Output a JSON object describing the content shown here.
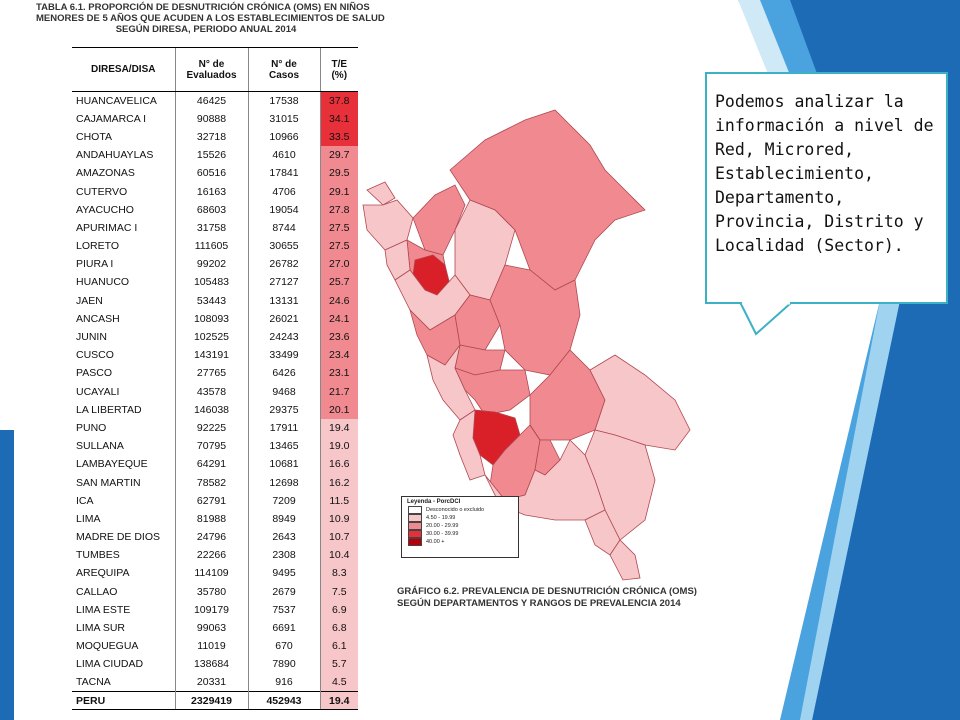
{
  "table": {
    "title_line1": "TABLA 6.1. PROPORCIÓN DE DESNUTRICIÓN CRÓNICA (OMS) EN NIÑOS",
    "title_line2": "MENORES DE 5 AÑOS QUE ACUDEN A LOS ESTABLECIMIENTOS DE SALUD",
    "title_line3": "SEGÚN DIRESA, PERIODO ANUAL 2014",
    "headers": {
      "diresa": "DIRESA/DISA",
      "evaluados_1": "N° de",
      "evaluados_2": "Evaluados",
      "casos_1": "N° de",
      "casos_2": "Casos",
      "te_1": "T/E",
      "te_2": "(%)"
    },
    "rows": [
      {
        "name": "HUANCAVELICA",
        "evaluados": "46425",
        "casos": "17538",
        "te": "37.8"
      },
      {
        "name": "CAJAMARCA I",
        "evaluados": "90888",
        "casos": "31015",
        "te": "34.1"
      },
      {
        "name": "CHOTA",
        "evaluados": "32718",
        "casos": "10966",
        "te": "33.5"
      },
      {
        "name": "ANDAHUAYLAS",
        "evaluados": "15526",
        "casos": "4610",
        "te": "29.7"
      },
      {
        "name": "AMAZONAS",
        "evaluados": "60516",
        "casos": "17841",
        "te": "29.5"
      },
      {
        "name": "CUTERVO",
        "evaluados": "16163",
        "casos": "4706",
        "te": "29.1"
      },
      {
        "name": "AYACUCHO",
        "evaluados": "68603",
        "casos": "19054",
        "te": "27.8"
      },
      {
        "name": "APURIMAC I",
        "evaluados": "31758",
        "casos": "8744",
        "te": "27.5"
      },
      {
        "name": "LORETO",
        "evaluados": "111605",
        "casos": "30655",
        "te": "27.5"
      },
      {
        "name": "PIURA I",
        "evaluados": "99202",
        "casos": "26782",
        "te": "27.0"
      },
      {
        "name": "HUANUCO",
        "evaluados": "105483",
        "casos": "27127",
        "te": "25.7"
      },
      {
        "name": "JAEN",
        "evaluados": "53443",
        "casos": "13131",
        "te": "24.6"
      },
      {
        "name": "ANCASH",
        "evaluados": "108093",
        "casos": "26021",
        "te": "24.1"
      },
      {
        "name": "JUNIN",
        "evaluados": "102525",
        "casos": "24243",
        "te": "23.6"
      },
      {
        "name": "CUSCO",
        "evaluados": "143191",
        "casos": "33499",
        "te": "23.4"
      },
      {
        "name": "PASCO",
        "evaluados": "27765",
        "casos": "6426",
        "te": "23.1"
      },
      {
        "name": "UCAYALI",
        "evaluados": "43578",
        "casos": "9468",
        "te": "21.7"
      },
      {
        "name": "LA LIBERTAD",
        "evaluados": "146038",
        "casos": "29375",
        "te": "20.1"
      },
      {
        "name": "PUNO",
        "evaluados": "92225",
        "casos": "17911",
        "te": "19.4"
      },
      {
        "name": "SULLANA",
        "evaluados": "70795",
        "casos": "13465",
        "te": "19.0"
      },
      {
        "name": "LAMBAYEQUE",
        "evaluados": "64291",
        "casos": "10681",
        "te": "16.6"
      },
      {
        "name": "SAN MARTIN",
        "evaluados": "78582",
        "casos": "12698",
        "te": "16.2"
      },
      {
        "name": "ICA",
        "evaluados": "62791",
        "casos": "7209",
        "te": "11.5"
      },
      {
        "name": "LIMA",
        "evaluados": "81988",
        "casos": "8949",
        "te": "10.9"
      },
      {
        "name": "MADRE DE DIOS",
        "evaluados": "24796",
        "casos": "2643",
        "te": "10.7"
      },
      {
        "name": "TUMBES",
        "evaluados": "22266",
        "casos": "2308",
        "te": "10.4"
      },
      {
        "name": "AREQUIPA",
        "evaluados": "114109",
        "casos": "9495",
        "te": "8.3"
      },
      {
        "name": "CALLAO",
        "evaluados": "35780",
        "casos": "2679",
        "te": "7.5"
      },
      {
        "name": "LIMA ESTE",
        "evaluados": "109179",
        "casos": "7537",
        "te": "6.9"
      },
      {
        "name": "LIMA SUR",
        "evaluados": "99063",
        "casos": "6691",
        "te": "6.8"
      },
      {
        "name": "MOQUEGUA",
        "evaluados": "11019",
        "casos": "670",
        "te": "6.1"
      },
      {
        "name": "LIMA CIUDAD",
        "evaluados": "138684",
        "casos": "7890",
        "te": "5.7"
      },
      {
        "name": "TACNA",
        "evaluados": "20331",
        "casos": "916",
        "te": "4.5"
      }
    ],
    "total": {
      "name": "PERU",
      "evaluados": "2329419",
      "casos": "452943",
      "te": "19.4"
    }
  },
  "map": {
    "legend_title": "Leyenda - PorcDCI",
    "legend_items": [
      {
        "label": "Desconocido o excluido",
        "color": "#ffffff"
      },
      {
        "label": "4.50 - 19.99",
        "color": "#f7c6c9"
      },
      {
        "label": "20.00 - 29.99",
        "color": "#f08a90"
      },
      {
        "label": "30.00 - 39.99",
        "color": "#e8303a"
      },
      {
        "label": "40.00 +",
        "color": "#b3000a"
      }
    ],
    "caption_line1": "GRÁFICO 6.2. PREVALENCIA DE DESNUTRICIÓN CRÓNICA (OMS)",
    "caption_line2": "SEGÚN DEPARTAMENTOS Y RANGOS DE PREVALENCIA 2014"
  },
  "callout": {
    "text": "Podemos analizar la información a nivel de Red, Microred, Establecimiento, Departamento, Provincia, Distrito y Localidad (Sector).",
    "border_color": "#3ab1c4"
  },
  "theme": {
    "accent": "#1d6bb5",
    "light_accent": "#4aa3df"
  }
}
